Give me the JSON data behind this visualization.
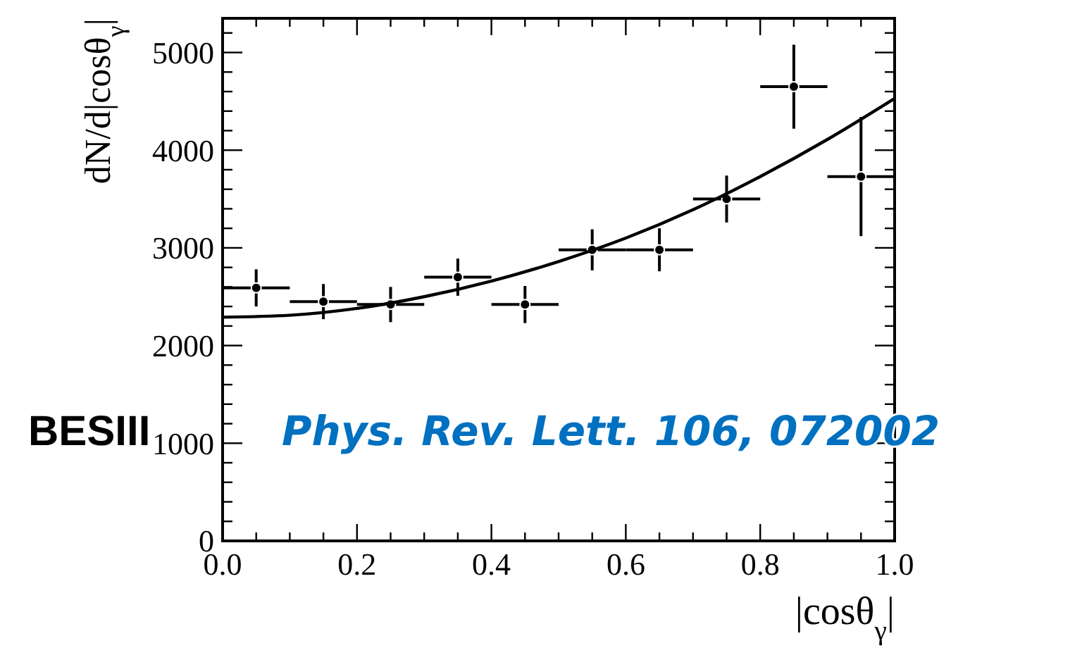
{
  "chart_data": {
    "type": "scatter",
    "xlabel": "|cosθ$_{γ}$|",
    "ylabel": "dN/d|cosθ$_{γ}$|",
    "annotations": [
      "BESIII",
      "Phys. Rev. Lett. 106, 072002"
    ],
    "xlim": [
      0,
      1
    ],
    "ylim": [
      0,
      5350
    ],
    "xticks": [
      {
        "value": 0,
        "label": "0.0"
      },
      {
        "value": 0.05,
        "label": null
      },
      {
        "value": 0.1,
        "label": null
      },
      {
        "value": 0.15,
        "label": null
      },
      {
        "value": 0.2,
        "label": "0.2"
      },
      {
        "value": 0.25,
        "label": null
      },
      {
        "value": 0.3,
        "label": null
      },
      {
        "value": 0.35,
        "label": null
      },
      {
        "value": 0.4,
        "label": "0.4"
      },
      {
        "value": 0.45,
        "label": null
      },
      {
        "value": 0.5,
        "label": null
      },
      {
        "value": 0.55,
        "label": null
      },
      {
        "value": 0.6,
        "label": "0.6"
      },
      {
        "value": 0.65,
        "label": null
      },
      {
        "value": 0.7,
        "label": null
      },
      {
        "value": 0.75,
        "label": null
      },
      {
        "value": 0.8,
        "label": "0.8"
      },
      {
        "value": 0.85,
        "label": null
      },
      {
        "value": 0.9,
        "label": null
      },
      {
        "value": 0.95,
        "label": null
      },
      {
        "value": 1,
        "label": "1.0"
      }
    ],
    "yticks": [
      0,
      {
        "value": 200,
        "label": null
      },
      {
        "value": 400,
        "label": null
      },
      {
        "value": 600,
        "label": null
      },
      {
        "value": 800,
        "label": null
      },
      1000,
      {
        "value": 1200,
        "label": null
      },
      {
        "value": 1400,
        "label": null
      },
      {
        "value": 1600,
        "label": null
      },
      {
        "value": 1800,
        "label": null
      },
      2000,
      {
        "value": 2200,
        "label": null
      },
      {
        "value": 2400,
        "label": null
      },
      {
        "value": 2600,
        "label": null
      },
      {
        "value": 2800,
        "label": null
      },
      3000,
      {
        "value": 3200,
        "label": null
      },
      {
        "value": 3400,
        "label": null
      },
      {
        "value": 3600,
        "label": null
      },
      {
        "value": 3800,
        "label": null
      },
      4000,
      {
        "value": 4200,
        "label": null
      },
      {
        "value": 4400,
        "label": null
      },
      {
        "value": 4600,
        "label": null
      },
      {
        "value": 4800,
        "label": null
      },
      5000,
      {
        "value": 5200,
        "label": null
      }
    ],
    "series": [
      {
        "marker": "circle",
        "color": "#000000",
        "x": [
          0.05,
          0.15,
          0.25,
          0.35,
          0.45,
          0.55,
          0.65,
          0.75,
          0.85,
          0.95
        ],
        "values": [
          2590,
          2450,
          2420,
          2700,
          2420,
          2980,
          2980,
          3500,
          4650,
          3730
        ],
        "errors": [
          190,
          180,
          180,
          190,
          190,
          210,
          220,
          240,
          430,
          610
        ],
        "xerrors": [
          0.05,
          0.05,
          0.05,
          0.05,
          0.05,
          0.05,
          0.05,
          0.05,
          0.05,
          0.05
        ]
      },
      {
        "type": "line",
        "marker": "none",
        "color": "#000000",
        "line_style": "solid",
        "x": [
          0,
          0.1,
          0.2,
          0.3,
          0.4,
          0.5,
          0.6,
          0.7,
          0.8,
          0.9,
          1
        ],
        "values": [
          2290,
          2310,
          2380,
          2500,
          2660,
          2860,
          3100,
          3390,
          3730,
          4110,
          4530
        ]
      }
    ]
  }
}
